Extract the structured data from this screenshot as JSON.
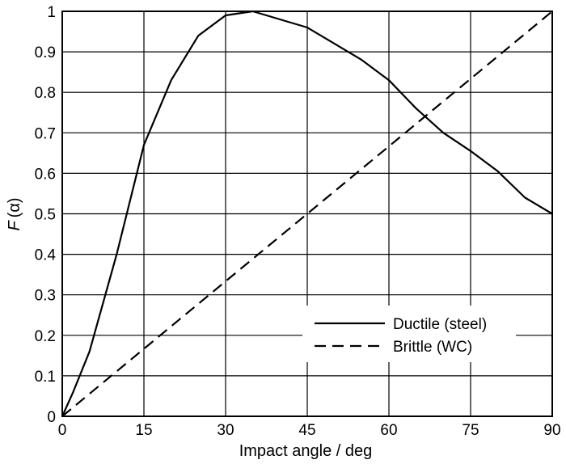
{
  "chart_data": {
    "type": "line",
    "title": "",
    "xlabel": "Impact angle / deg",
    "ylabel": "F (α)",
    "ylabel_parts": {
      "main": "F",
      "arg": "(α)"
    },
    "xlim": [
      0,
      90
    ],
    "ylim": [
      0,
      1
    ],
    "xticks": [
      0,
      15,
      30,
      45,
      60,
      75,
      90
    ],
    "yticks": [
      0,
      0.1,
      0.2,
      0.3,
      0.4,
      0.5,
      0.6,
      0.7,
      0.8,
      0.9,
      1
    ],
    "xtick_labels": [
      "0",
      "15",
      "30",
      "45",
      "60",
      "75",
      "90"
    ],
    "ytick_labels": [
      "0",
      "0.1",
      "0.2",
      "0.3",
      "0.4",
      "0.5",
      "0.6",
      "0.7",
      "0.8",
      "0.9",
      "1"
    ],
    "grid": true,
    "legend_position": "bottom-right",
    "series": [
      {
        "name": "Ductile (steel)",
        "style": "solid",
        "color": "#000000",
        "x": [
          0,
          2,
          5,
          10,
          15,
          20,
          25,
          30,
          35,
          40,
          45,
          50,
          55,
          60,
          65,
          70,
          75,
          80,
          85,
          90
        ],
        "y": [
          0,
          0.06,
          0.16,
          0.4,
          0.67,
          0.83,
          0.94,
          0.99,
          1.0,
          0.98,
          0.96,
          0.92,
          0.88,
          0.83,
          0.76,
          0.7,
          0.655,
          0.605,
          0.54,
          0.5
        ]
      },
      {
        "name": "Brittle (WC)",
        "style": "dashed",
        "color": "#000000",
        "x": [
          0,
          90
        ],
        "y": [
          0,
          1
        ]
      }
    ]
  }
}
